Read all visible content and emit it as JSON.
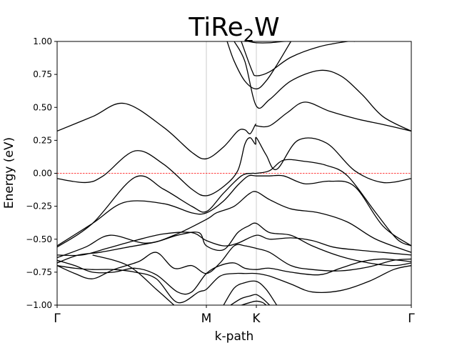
{
  "chart_data": {
    "type": "line",
    "title": "TiRe",
    "title_subscript": "2",
    "title_suffix": "W",
    "xlabel": "k-path",
    "ylabel": "Energy (eV)",
    "ylim": [
      -1.0,
      1.0
    ],
    "xlim": [
      0,
      1
    ],
    "yticks": [
      -1.0,
      -0.75,
      -0.5,
      -0.25,
      0.0,
      0.25,
      0.5,
      0.75,
      1.0
    ],
    "ytick_labels": [
      "−1.00",
      "−0.75",
      "−0.50",
      "−0.25",
      "0.00",
      "0.25",
      "0.50",
      "0.75",
      "1.00"
    ],
    "kpoints": [
      {
        "label": "Γ",
        "x": 0.0
      },
      {
        "label": "M",
        "x": 0.4214
      },
      {
        "label": "K",
        "x": 0.5625
      },
      {
        "label": "Γ",
        "x": 1.0
      }
    ],
    "fermi_level": 0.0,
    "fermi_color": "#ff0000",
    "kline_color": "#cccccc",
    "band_color": "#000000",
    "bands": [
      {
        "x": [
          0.0,
          0.1,
          0.19,
          0.3,
          0.38,
          0.4214,
          0.47,
          0.51,
          0.53,
          0.545,
          0.56,
          0.5625,
          0.6,
          0.65,
          0.7,
          0.77,
          0.85,
          0.92,
          1.0
        ],
        "y": [
          0.32,
          0.43,
          0.53,
          0.35,
          0.16,
          0.11,
          0.2,
          0.32,
          0.33,
          0.3,
          0.37,
          0.36,
          0.36,
          0.46,
          0.54,
          0.47,
          0.41,
          0.37,
          0.32
        ]
      },
      {
        "x": [
          0.0,
          0.08,
          0.13,
          0.22,
          0.3,
          0.38,
          0.4214,
          0.47,
          0.51,
          0.53,
          0.545,
          0.56,
          0.5625,
          0.59,
          0.62,
          0.68,
          0.76,
          0.84,
          0.92,
          1.0
        ],
        "y": [
          -0.04,
          -0.07,
          -0.02,
          0.17,
          0.07,
          -0.12,
          -0.17,
          -0.1,
          0.02,
          0.22,
          0.27,
          0.22,
          0.27,
          0.14,
          0.03,
          0.25,
          0.23,
          0.02,
          -0.07,
          -0.04
        ]
      },
      {
        "x": [
          0.0,
          0.1,
          0.22,
          0.3,
          0.38,
          0.4214,
          0.47,
          0.52,
          0.55,
          0.5625,
          0.6,
          0.64,
          0.7,
          0.76,
          0.82,
          0.9,
          0.96,
          1.0
        ],
        "y": [
          -0.56,
          -0.38,
          -0.03,
          -0.12,
          -0.25,
          -0.29,
          -0.15,
          -0.02,
          0.0,
          0.0,
          0.02,
          0.1,
          0.09,
          0.06,
          -0.02,
          -0.3,
          -0.5,
          -0.55
        ]
      },
      {
        "x": [
          0.0,
          0.1,
          0.19,
          0.3,
          0.38,
          0.4214,
          0.47,
          0.51,
          0.54,
          0.5625,
          0.6,
          0.64,
          0.7,
          0.77,
          0.84,
          0.92,
          1.0
        ],
        "y": [
          -0.55,
          -0.38,
          -0.22,
          -0.23,
          -0.3,
          -0.3,
          -0.21,
          -0.09,
          -0.02,
          -0.02,
          -0.02,
          -0.02,
          -0.08,
          -0.06,
          -0.1,
          -0.4,
          -0.55
        ]
      },
      {
        "x": [
          0.0,
          0.08,
          0.15,
          0.25,
          0.33,
          0.4214,
          0.45,
          0.5,
          0.54,
          0.5625,
          0.6,
          0.66,
          0.74,
          0.82,
          0.9,
          1.0
        ],
        "y": [
          -0.64,
          -0.56,
          -0.47,
          -0.53,
          -0.47,
          -0.35,
          -0.3,
          -0.25,
          -0.16,
          -0.14,
          -0.2,
          -0.27,
          -0.3,
          -0.37,
          -0.5,
          -0.6
        ]
      },
      {
        "x": [
          0.0,
          0.07,
          0.14,
          0.22,
          0.3,
          0.38,
          0.4214,
          0.47,
          0.51,
          0.5625,
          0.6,
          0.66,
          0.72,
          0.78,
          0.84,
          0.92,
          1.0
        ],
        "y": [
          -0.62,
          -0.62,
          -0.57,
          -0.51,
          -0.46,
          -0.45,
          -0.51,
          -0.55,
          -0.53,
          -0.47,
          -0.5,
          -0.49,
          -0.51,
          -0.56,
          -0.58,
          -0.6,
          -0.62
        ]
      },
      {
        "x": [
          0.0,
          0.06,
          0.12,
          0.2,
          0.28,
          0.34,
          0.4,
          0.4214,
          0.47,
          0.51,
          0.54,
          0.5625,
          0.6,
          0.66,
          0.72,
          0.8,
          0.88,
          0.95,
          1.0
        ],
        "y": [
          -0.68,
          -0.62,
          -0.6,
          -0.56,
          -0.52,
          -0.47,
          -0.45,
          -0.55,
          -0.58,
          -0.45,
          -0.4,
          -0.38,
          -0.45,
          -0.47,
          -0.55,
          -0.63,
          -0.68,
          -0.7,
          -0.68
        ]
      },
      {
        "x": [
          0.0,
          0.05,
          0.1,
          0.16,
          0.23,
          0.28,
          0.33,
          0.38,
          0.4214,
          0.46,
          0.5,
          0.53,
          0.5625,
          0.6,
          0.66,
          0.72,
          0.8,
          0.88,
          0.95,
          1.0
        ],
        "y": [
          -0.7,
          -0.76,
          -0.8,
          -0.73,
          -0.67,
          -0.6,
          -0.72,
          -0.7,
          -0.76,
          -0.68,
          -0.55,
          -0.55,
          -0.57,
          -0.6,
          -0.7,
          -0.73,
          -0.74,
          -0.71,
          -0.66,
          -0.65
        ]
      },
      {
        "x": [
          0.0,
          0.05,
          0.1,
          0.16,
          0.22,
          0.28,
          0.34,
          0.38,
          0.4214,
          0.46,
          0.5,
          0.53,
          0.5625,
          0.6,
          0.66,
          0.74,
          0.8,
          0.86,
          0.92,
          1.0
        ],
        "y": [
          -0.66,
          -0.7,
          -0.75,
          -0.75,
          -0.72,
          -0.77,
          -0.9,
          -0.9,
          -0.76,
          -0.7,
          -0.68,
          -0.72,
          -0.73,
          -0.72,
          -0.75,
          -0.77,
          -0.72,
          -0.67,
          -0.65,
          -0.67
        ]
      },
      {
        "x": [
          0.0,
          0.05,
          0.1,
          0.16,
          0.22,
          0.28,
          0.34,
          0.4,
          0.4214,
          0.46,
          0.5,
          0.53,
          0.5625,
          0.6,
          0.66,
          0.72,
          0.8,
          0.88,
          0.95,
          1.0
        ],
        "y": [
          -0.7,
          -0.72,
          -0.73,
          -0.73,
          -0.75,
          -0.8,
          -0.98,
          -0.9,
          -0.88,
          -0.78,
          -0.76,
          -0.76,
          -0.76,
          -0.78,
          -0.84,
          -0.9,
          -0.89,
          -0.82,
          -0.73,
          -0.7
        ]
      },
      {
        "x": [
          0.47,
          0.5,
          0.53,
          0.5625,
          0.59,
          0.62
        ],
        "y": [
          -1.0,
          -0.87,
          -0.83,
          -0.82,
          -0.88,
          -1.0
        ]
      },
      {
        "x": [
          0.49,
          0.52,
          0.545,
          0.5625,
          0.58,
          0.6
        ],
        "y": [
          -1.0,
          -0.95,
          -0.93,
          -0.92,
          -0.95,
          -1.0
        ]
      },
      {
        "x": [
          0.52,
          0.545,
          0.5625,
          0.58,
          0.59
        ],
        "y": [
          -1.0,
          -0.98,
          -0.97,
          -0.98,
          -1.0
        ]
      },
      {
        "x": [
          0.1,
          0.2,
          0.28,
          0.33
        ],
        "y": [
          -0.62,
          -0.7,
          -0.88,
          -1.0
        ]
      },
      {
        "x": [
          0.48,
          0.5,
          0.53,
          0.5625,
          0.59,
          0.62,
          0.66
        ],
        "y": [
          1.0,
          0.85,
          0.7,
          0.64,
          0.7,
          0.82,
          1.0
        ]
      },
      {
        "x": [
          0.5,
          0.53,
          0.5625,
          0.6,
          0.66,
          0.74,
          0.8,
          0.86,
          0.92,
          1.0
        ],
        "y": [
          1.0,
          0.85,
          0.51,
          0.56,
          0.7,
          0.78,
          0.74,
          0.6,
          0.43,
          0.32
        ]
      },
      {
        "x": [
          0.52,
          0.55,
          0.5625,
          0.6,
          0.66,
          0.74,
          0.82,
          0.84
        ],
        "y": [
          1.0,
          0.78,
          0.74,
          0.77,
          0.88,
          0.96,
          1.0,
          1.0
        ]
      },
      {
        "x": [
          0.54,
          0.5625,
          0.6,
          0.64,
          0.66
        ],
        "y": [
          1.0,
          0.99,
          0.99,
          1.0,
          1.0
        ]
      }
    ]
  }
}
